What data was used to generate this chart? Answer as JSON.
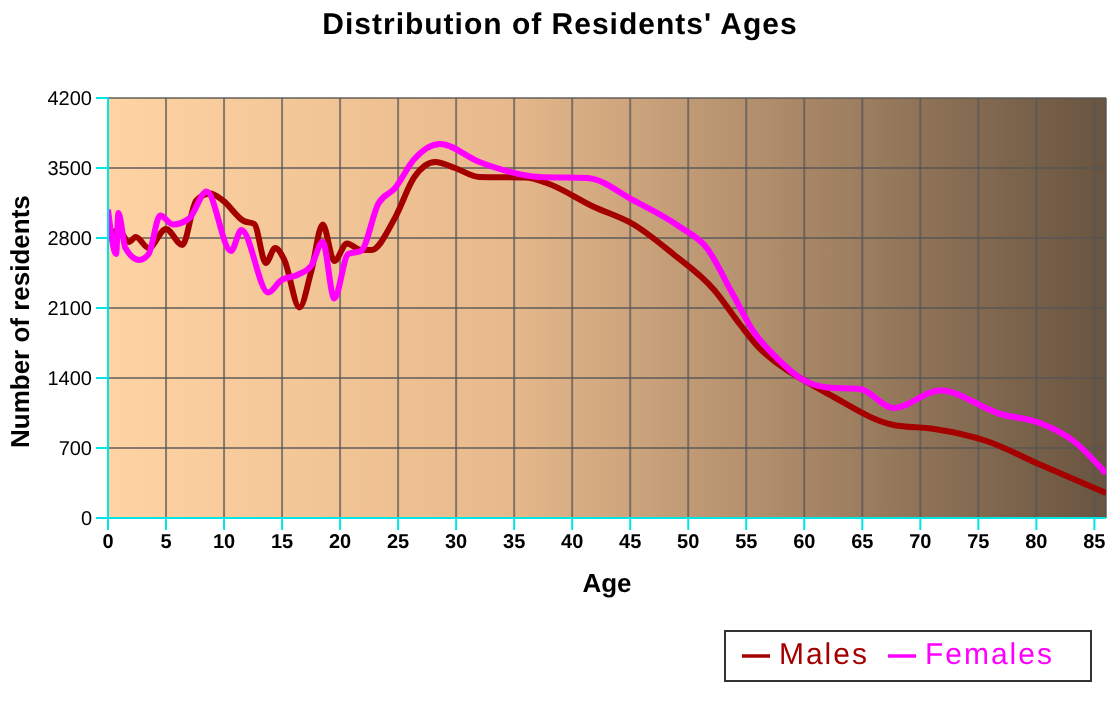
{
  "chart_data": {
    "type": "line",
    "title": "Distribution of Residents' Ages",
    "xlabel": "Age",
    "ylabel": "Number of residents",
    "xlim": [
      0,
      86
    ],
    "xticks": [
      0,
      5,
      10,
      15,
      20,
      25,
      30,
      35,
      40,
      45,
      50,
      55,
      60,
      65,
      70,
      75,
      80,
      85
    ],
    "ylim": [
      0,
      4200
    ],
    "yticks": [
      0,
      700,
      1400,
      2100,
      2800,
      3500,
      4200
    ],
    "grid": true,
    "legend": "bottom right",
    "marker": "none",
    "line_style": "solid",
    "series": [
      {
        "name": "Males",
        "color": "#a50000",
        "x": [
          0,
          0.9,
          1.8,
          2.4,
          3.5,
          5,
          6.4,
          7.6,
          8.8,
          9.9,
          11.7,
          12.6,
          13.6,
          14.4,
          15.2,
          16.5,
          17.5,
          18.5,
          19.5,
          20.6,
          21.8,
          22.7,
          24.7,
          26.4,
          28.2,
          29.9,
          32,
          36,
          37.8,
          41.8,
          45.3,
          48.7,
          52.2,
          54.5,
          56.2,
          57.4,
          58.5,
          59.7,
          62,
          67.7,
          71.2,
          75.7,
          80.3,
          86
        ],
        "values": [
          2790,
          2880,
          2760,
          2810,
          2700,
          2890,
          2730,
          3175,
          3245,
          3175,
          2970,
          2940,
          2550,
          2700,
          2580,
          2105,
          2460,
          2935,
          2570,
          2745,
          2680,
          2680,
          2995,
          3410,
          3560,
          3500,
          3410,
          3405,
          3350,
          3115,
          2935,
          2640,
          2285,
          1930,
          1690,
          1570,
          1480,
          1395,
          1245,
          930,
          890,
          770,
          535,
          250
        ]
      },
      {
        "name": "Females",
        "color": "#ff00ff",
        "x": [
          0,
          0.7,
          0.9,
          1.5,
          2.7,
          3.5,
          4.5,
          5.6,
          7,
          8.5,
          10.6,
          11.5,
          13.8,
          14.9,
          16.4,
          17.5,
          18.5,
          19.5,
          20.7,
          21.8,
          23.3,
          24.7,
          26.4,
          28.6,
          32,
          37.2,
          41.3,
          45.3,
          49.3,
          51.6,
          53.9,
          55.6,
          57.9,
          59.7,
          62,
          64.8,
          67.7,
          71.7,
          76.9,
          80.3,
          83.2,
          86
        ],
        "values": [
          3085,
          2640,
          3050,
          2700,
          2580,
          2640,
          3025,
          2935,
          2995,
          3265,
          2670,
          2880,
          2255,
          2375,
          2435,
          2520,
          2760,
          2195,
          2640,
          2670,
          3145,
          3295,
          3590,
          3740,
          3560,
          3410,
          3400,
          3175,
          2910,
          2700,
          2225,
          1870,
          1570,
          1395,
          1305,
          1290,
          1100,
          1275,
          1040,
          950,
          770,
          445
        ]
      }
    ]
  }
}
